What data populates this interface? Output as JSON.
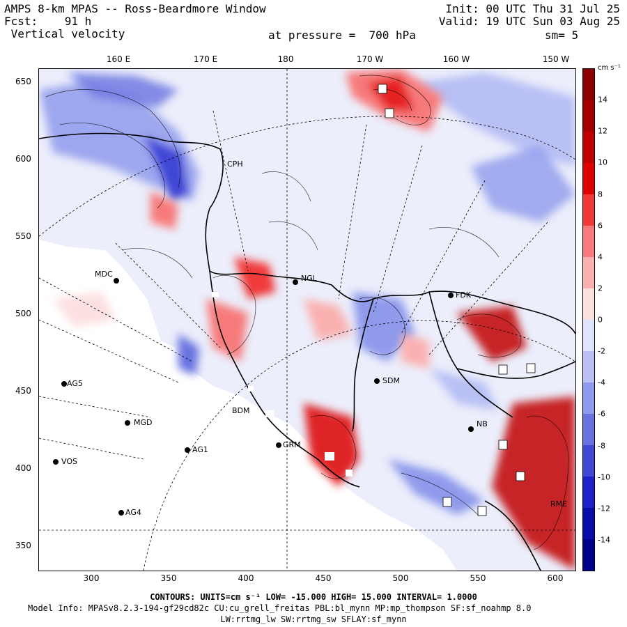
{
  "header": {
    "line1_left": "AMPS 8-km MPAS -- Ross-Beardmore Window",
    "line2_left_a": "Fcst:",
    "line2_left_b": "91 h",
    "line3_left": "Vertical velocity",
    "line1_right": "Init: 00 UTC Thu 31 Jul 25",
    "line2_right": "Valid: 19 UTC Sun 03 Aug 25",
    "pressure": "at pressure =  700 hPa",
    "smoothing": "sm= 5"
  },
  "lon_labels": [
    "160 E",
    "170 E",
    "180",
    "170 W",
    "160 W",
    "150 W"
  ],
  "y_ticks": [
    "650",
    "600",
    "550",
    "500",
    "450",
    "400",
    "350"
  ],
  "x_ticks": [
    "300",
    "350",
    "400",
    "450",
    "500",
    "550",
    "600"
  ],
  "colorbar": {
    "units": "cm s⁻¹",
    "labels": [
      "14",
      "12",
      "10",
      "8",
      "6",
      "4",
      "2",
      "0",
      "-2",
      "-4",
      "-6",
      "-8",
      "-10",
      "-12",
      "-14"
    ],
    "colors_pos": [
      "#8b0000",
      "#a40000",
      "#c00000",
      "#dd0000",
      "#f03a3a",
      "#f77a7a",
      "#fbb0b0",
      "#fde0e0"
    ],
    "colors_neg": [
      "#e0e4fb",
      "#b8c0f4",
      "#8f9aec",
      "#6872e0",
      "#3f47d6",
      "#1c22c8",
      "#0a0ea8",
      "#00008b"
    ]
  },
  "stations": [
    {
      "id": "MDC"
    },
    {
      "id": "AG5"
    },
    {
      "id": "MGD"
    },
    {
      "id": "AG1"
    },
    {
      "id": "VOS"
    },
    {
      "id": "AG4"
    },
    {
      "id": "NGL"
    },
    {
      "id": "FDK"
    },
    {
      "id": "SDM"
    },
    {
      "id": "NB"
    },
    {
      "id": "BDM"
    },
    {
      "id": "GRM"
    },
    {
      "id": "CPH"
    },
    {
      "id": "RME"
    }
  ],
  "footer": {
    "contours": "CONTOURS:  UNITS=cm s⁻¹  LOW= -15.000      HIGH=  15.000      INTERVAL=   1.0000",
    "model": "Model Info: MPASv8.2.3-194-gf29cd82c CU:cu_grell_freitas PBL:bl_mynn MP:mp_thompson SF:sf_noahmp 8.0",
    "physics": "LW:rrtmg_lw SW:rrtmg_sw SFLAY:sf_mynn"
  }
}
